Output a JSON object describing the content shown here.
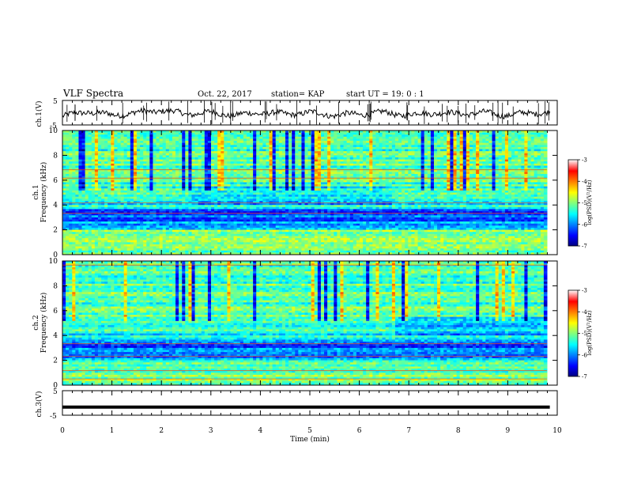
{
  "header": {
    "title": "VLF Spectra",
    "date": "Oct. 22, 2017",
    "station": "station= KAP",
    "start": "start  UT =   19: 0  : 1"
  },
  "chart_data": [
    {
      "type": "line",
      "panel": "ch1-waveform",
      "ylabel": "ch.1(V)",
      "ylim": [
        -5,
        5
      ],
      "yticks": [
        "5",
        "-5"
      ],
      "xlim": [
        0,
        10
      ],
      "color": "#000000",
      "x": [
        0,
        0.5,
        1,
        1.5,
        2,
        2.5,
        3,
        3.5,
        4,
        4.5,
        5,
        5.5,
        6,
        6.5,
        7,
        7.5,
        8,
        8.5,
        9,
        9.5,
        9.8
      ],
      "y": [
        -1.5,
        0.5,
        -1,
        0,
        1,
        -0.5,
        0,
        -1,
        0,
        -0.5,
        0,
        -1,
        -0.5,
        0,
        -1,
        0,
        -0.5,
        0,
        -1,
        0,
        0
      ]
    },
    {
      "type": "heatmap",
      "panel": "ch1-spectrogram",
      "ylabel": "ch.1\nFrequency (kHz)",
      "ylabel_line1": "ch.1",
      "ylabel_line2": "Frequency (kHz)",
      "ylim": [
        0,
        10
      ],
      "yticks": [
        "0",
        "2",
        "4",
        "6",
        "8",
        "10"
      ],
      "xlim": [
        0,
        10
      ],
      "colorbar": {
        "label": "log(PSD)(V²/Hz)",
        "range": [
          -7,
          -3
        ],
        "ticks": [
          "-3",
          "-4",
          "-5",
          "-6",
          "-7"
        ]
      }
    },
    {
      "type": "heatmap",
      "panel": "ch2-spectrogram",
      "ylabel": "ch.2\nFrequency (kHz)",
      "ylabel_line1": "ch.2",
      "ylabel_line2": "Frequency (kHz)",
      "ylim": [
        0,
        10
      ],
      "yticks": [
        "0",
        "2",
        "4",
        "6",
        "8",
        "10"
      ],
      "xlim": [
        0,
        10
      ],
      "colorbar": {
        "label": "log(PSD)(V²/Hz)",
        "range": [
          -7,
          -3
        ],
        "ticks": [
          "-3",
          "-4",
          "-5",
          "-6",
          "-7"
        ]
      }
    },
    {
      "type": "line",
      "panel": "ch3-waveform",
      "ylabel": "ch.3(V)",
      "ylim": [
        -5,
        5
      ],
      "yticks": [
        "5",
        "-5"
      ],
      "xlim": [
        0,
        10
      ],
      "color": "#000000",
      "x": [
        0,
        9.85
      ],
      "y": [
        -1.7,
        -1.7
      ]
    }
  ],
  "xaxis": {
    "label": "Time (min)",
    "ticks": [
      "0",
      "1",
      "2",
      "3",
      "4",
      "5",
      "6",
      "7",
      "8",
      "9",
      "10"
    ]
  },
  "colors": {
    "jet": [
      "#00008f",
      "#0000ff",
      "#00ffff",
      "#ffff00",
      "#ff0000",
      "#800000"
    ]
  }
}
